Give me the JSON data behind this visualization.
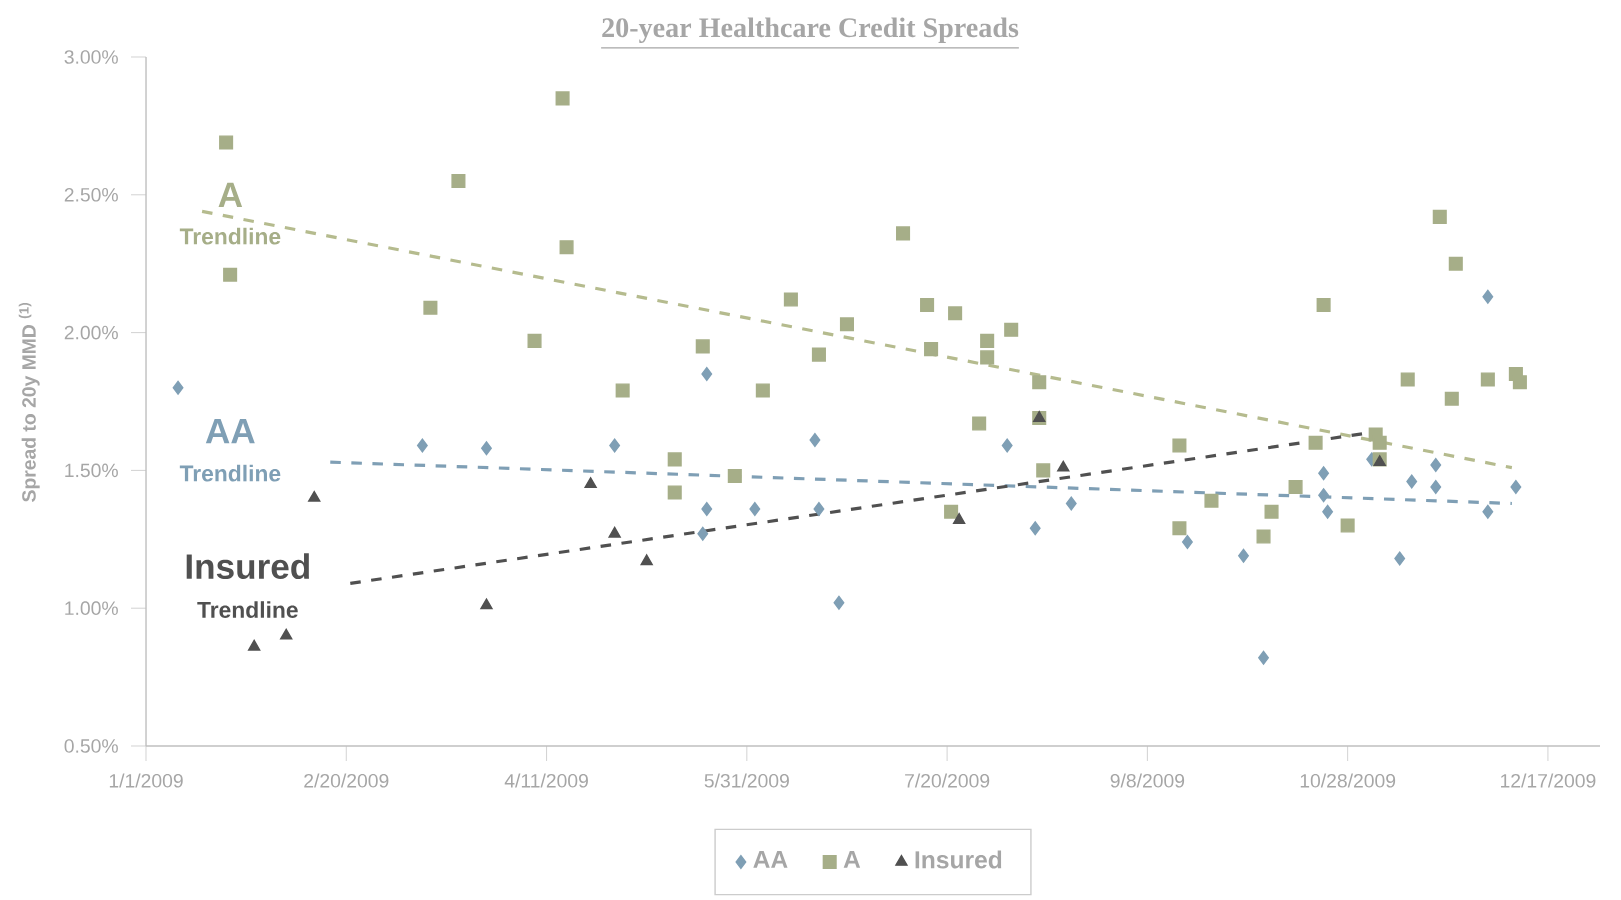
{
  "chart_data": {
    "type": "scatter",
    "title": "20-year Healthcare Credit Spreads",
    "ylabel": "Spread to 20y MMD $^{(1)}$",
    "xlim": [
      "2009-01-01",
      "2009-12-30"
    ],
    "xticks": [
      {
        "value": "2009-01-01",
        "label": "1/1/2009"
      },
      {
        "value": "2009-02-20",
        "label": "2/20/2009"
      },
      {
        "value": "2009-04-11",
        "label": "4/11/2009"
      },
      {
        "value": "2009-05-31",
        "label": "5/31/2009"
      },
      {
        "value": "2009-07-20",
        "label": "7/20/2009"
      },
      {
        "value": "2009-09-08",
        "label": "9/8/2009"
      },
      {
        "value": "2009-10-28",
        "label": "10/28/2009"
      },
      {
        "value": "2009-12-17",
        "label": "12/17/2009"
      }
    ],
    "ylim": [
      0.5,
      3.0
    ],
    "yticks": [
      {
        "value": 0.5,
        "label": "0.50%"
      },
      {
        "value": 1.0,
        "label": "1.00%"
      },
      {
        "value": 1.5,
        "label": "1.50%"
      },
      {
        "value": 2.0,
        "label": "2.00%"
      },
      {
        "value": 2.5,
        "label": "2.50%"
      },
      {
        "value": 3.0,
        "label": "3.00%"
      }
    ],
    "legend": "bottom",
    "series": [
      {
        "name": "AA",
        "marker": "diamond",
        "color": "#7f9fb5",
        "x": [
          "2009-01-09",
          "2009-03-11",
          "2009-03-27",
          "2009-04-28",
          "2009-05-21",
          "2009-05-21",
          "2009-05-20",
          "2009-06-02",
          "2009-06-17",
          "2009-06-18",
          "2009-06-23",
          "2009-08-04",
          "2009-08-11",
          "2009-08-20",
          "2009-09-18",
          "2009-10-02",
          "2009-10-07",
          "2009-10-22",
          "2009-10-22",
          "2009-10-23",
          "2009-11-03",
          "2009-11-10",
          "2009-11-13",
          "2009-11-19",
          "2009-11-19",
          "2009-12-02",
          "2009-12-02",
          "2009-12-09"
        ],
        "values": [
          1.8,
          1.59,
          1.58,
          1.59,
          1.85,
          1.36,
          1.27,
          1.36,
          1.61,
          1.36,
          1.02,
          1.59,
          1.29,
          1.38,
          1.24,
          1.19,
          0.82,
          1.49,
          1.41,
          1.35,
          1.54,
          1.18,
          1.46,
          1.52,
          1.44,
          1.35,
          2.13,
          1.44
        ]
      },
      {
        "name": "A",
        "marker": "square",
        "color": "#a6ae88",
        "x": [
          "2009-01-21",
          "2009-01-22",
          "2009-03-13",
          "2009-03-20",
          "2009-04-08",
          "2009-04-15",
          "2009-04-16",
          "2009-04-30",
          "2009-05-13",
          "2009-05-13",
          "2009-05-20",
          "2009-05-28",
          "2009-06-04",
          "2009-06-11",
          "2009-06-18",
          "2009-06-25",
          "2009-07-09",
          "2009-07-15",
          "2009-07-16",
          "2009-07-22",
          "2009-07-21",
          "2009-07-28",
          "2009-07-30",
          "2009-07-30",
          "2009-08-05",
          "2009-08-12",
          "2009-08-12",
          "2009-08-13",
          "2009-09-16",
          "2009-09-16",
          "2009-09-24",
          "2009-10-07",
          "2009-10-09",
          "2009-10-15",
          "2009-10-20",
          "2009-10-22",
          "2009-10-28",
          "2009-11-04",
          "2009-11-05",
          "2009-11-05",
          "2009-11-12",
          "2009-11-20",
          "2009-11-23",
          "2009-11-24",
          "2009-12-02",
          "2009-12-09",
          "2009-12-10"
        ],
        "values": [
          2.69,
          2.21,
          2.09,
          2.55,
          1.97,
          2.85,
          2.31,
          1.79,
          1.54,
          1.42,
          1.95,
          1.48,
          1.79,
          2.12,
          1.92,
          2.03,
          2.36,
          2.1,
          1.94,
          2.07,
          1.35,
          1.67,
          1.97,
          1.91,
          2.01,
          1.82,
          1.69,
          1.5,
          1.59,
          1.29,
          1.39,
          1.26,
          1.35,
          1.44,
          1.6,
          2.1,
          1.3,
          1.63,
          1.6,
          1.54,
          1.83,
          2.42,
          1.76,
          2.25,
          1.83,
          1.85,
          1.82
        ]
      },
      {
        "name": "Insured",
        "marker": "triangle",
        "color": "#505050",
        "x": [
          "2009-01-28",
          "2009-02-05",
          "2009-02-12",
          "2009-03-27",
          "2009-04-22",
          "2009-04-28",
          "2009-05-06",
          "2009-07-23",
          "2009-08-12",
          "2009-08-18",
          "2009-11-05"
        ],
        "values": [
          0.86,
          0.9,
          1.4,
          1.01,
          1.45,
          1.27,
          1.17,
          1.32,
          1.69,
          1.51,
          1.53
        ]
      },
      {
        "type": "line",
        "marker": "none",
        "line_style": "dashed",
        "color": "#7f9fb5",
        "x": [
          "2009-02-16",
          "2009-12-08"
        ],
        "values": [
          1.53,
          1.38
        ]
      },
      {
        "type": "line",
        "marker": "none",
        "line_style": "dashed",
        "color": "#b5bb8e",
        "x": [
          "2009-01-15",
          "2009-12-08"
        ],
        "values": [
          2.44,
          1.51
        ]
      },
      {
        "type": "line",
        "marker": "none",
        "line_style": "dashed",
        "color": "#505050",
        "x": [
          "2009-02-21",
          "2009-11-04"
        ],
        "values": [
          1.09,
          1.64
        ]
      }
    ],
    "annotations": [
      "AA",
      "Trendline",
      "A",
      "Trendline",
      "Insured",
      "Trendline"
    ]
  }
}
